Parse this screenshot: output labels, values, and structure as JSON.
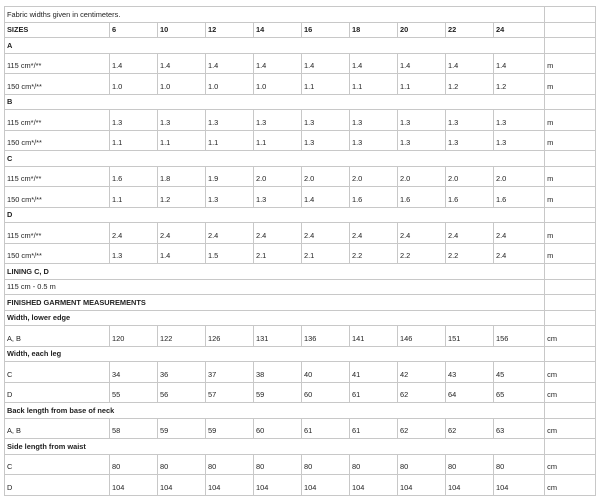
{
  "note": "Fabric widths given in centimeters.",
  "sizes_label": "SIZES",
  "sizes": [
    "6",
    "10",
    "12",
    "14",
    "16",
    "18",
    "20",
    "22",
    "24"
  ],
  "rows": [
    {
      "type": "header",
      "label": "A"
    },
    {
      "type": "data",
      "label": "115 cm*/**",
      "values": [
        "1.4",
        "1.4",
        "1.4",
        "1.4",
        "1.4",
        "1.4",
        "1.4",
        "1.4",
        "1.4"
      ],
      "unit": "m"
    },
    {
      "type": "data",
      "label": "150 cm*/**",
      "values": [
        "1.0",
        "1.0",
        "1.0",
        "1.0",
        "1.1",
        "1.1",
        "1.1",
        "1.2",
        "1.2"
      ],
      "unit": "m"
    },
    {
      "type": "header",
      "label": "B"
    },
    {
      "type": "data",
      "label": "115 cm*/**",
      "values": [
        "1.3",
        "1.3",
        "1.3",
        "1.3",
        "1.3",
        "1.3",
        "1.3",
        "1.3",
        "1.3"
      ],
      "unit": "m"
    },
    {
      "type": "data",
      "label": "150 cm*/**",
      "values": [
        "1.1",
        "1.1",
        "1.1",
        "1.1",
        "1.3",
        "1.3",
        "1.3",
        "1.3",
        "1.3"
      ],
      "unit": "m"
    },
    {
      "type": "header",
      "label": "C"
    },
    {
      "type": "data",
      "label": "115 cm*/**",
      "values": [
        "1.6",
        "1.8",
        "1.9",
        "2.0",
        "2.0",
        "2.0",
        "2.0",
        "2.0",
        "2.0"
      ],
      "unit": "m"
    },
    {
      "type": "data",
      "label": "150 cm*/**",
      "values": [
        "1.1",
        "1.2",
        "1.3",
        "1.3",
        "1.4",
        "1.6",
        "1.6",
        "1.6",
        "1.6"
      ],
      "unit": "m"
    },
    {
      "type": "header",
      "label": "D"
    },
    {
      "type": "data",
      "label": "115 cm*/**",
      "values": [
        "2.4",
        "2.4",
        "2.4",
        "2.4",
        "2.4",
        "2.4",
        "2.4",
        "2.4",
        "2.4"
      ],
      "unit": "m"
    },
    {
      "type": "data",
      "label": "150 cm*/**",
      "values": [
        "1.3",
        "1.4",
        "1.5",
        "2.1",
        "2.1",
        "2.2",
        "2.2",
        "2.2",
        "2.4"
      ],
      "unit": "m"
    },
    {
      "type": "header",
      "label": "LINING C, D"
    },
    {
      "type": "single",
      "label": "115 cm - 0.5 m"
    },
    {
      "type": "header",
      "label": "FINISHED GARMENT MEASUREMENTS"
    },
    {
      "type": "header",
      "label": "Width, lower edge"
    },
    {
      "type": "data",
      "label": "A, B",
      "values": [
        "120",
        "122",
        "126",
        "131",
        "136",
        "141",
        "146",
        "151",
        "156"
      ],
      "unit": "cm"
    },
    {
      "type": "header",
      "label": "Width, each leg"
    },
    {
      "type": "data",
      "label": "C",
      "values": [
        "34",
        "36",
        "37",
        "38",
        "40",
        "41",
        "42",
        "43",
        "45"
      ],
      "unit": "cm"
    },
    {
      "type": "data",
      "label": "D",
      "values": [
        "55",
        "56",
        "57",
        "59",
        "60",
        "61",
        "62",
        "64",
        "65"
      ],
      "unit": "cm"
    },
    {
      "type": "header",
      "label": "Back length from base of neck"
    },
    {
      "type": "data",
      "label": "A, B",
      "values": [
        "58",
        "59",
        "59",
        "60",
        "61",
        "61",
        "62",
        "62",
        "63"
      ],
      "unit": "cm"
    },
    {
      "type": "header",
      "label": "Side length from waist"
    },
    {
      "type": "data",
      "label": "C",
      "values": [
        "80",
        "80",
        "80",
        "80",
        "80",
        "80",
        "80",
        "80",
        "80"
      ],
      "unit": "cm"
    },
    {
      "type": "data",
      "label": "D",
      "values": [
        "104",
        "104",
        "104",
        "104",
        "104",
        "104",
        "104",
        "104",
        "104"
      ],
      "unit": "cm"
    }
  ]
}
